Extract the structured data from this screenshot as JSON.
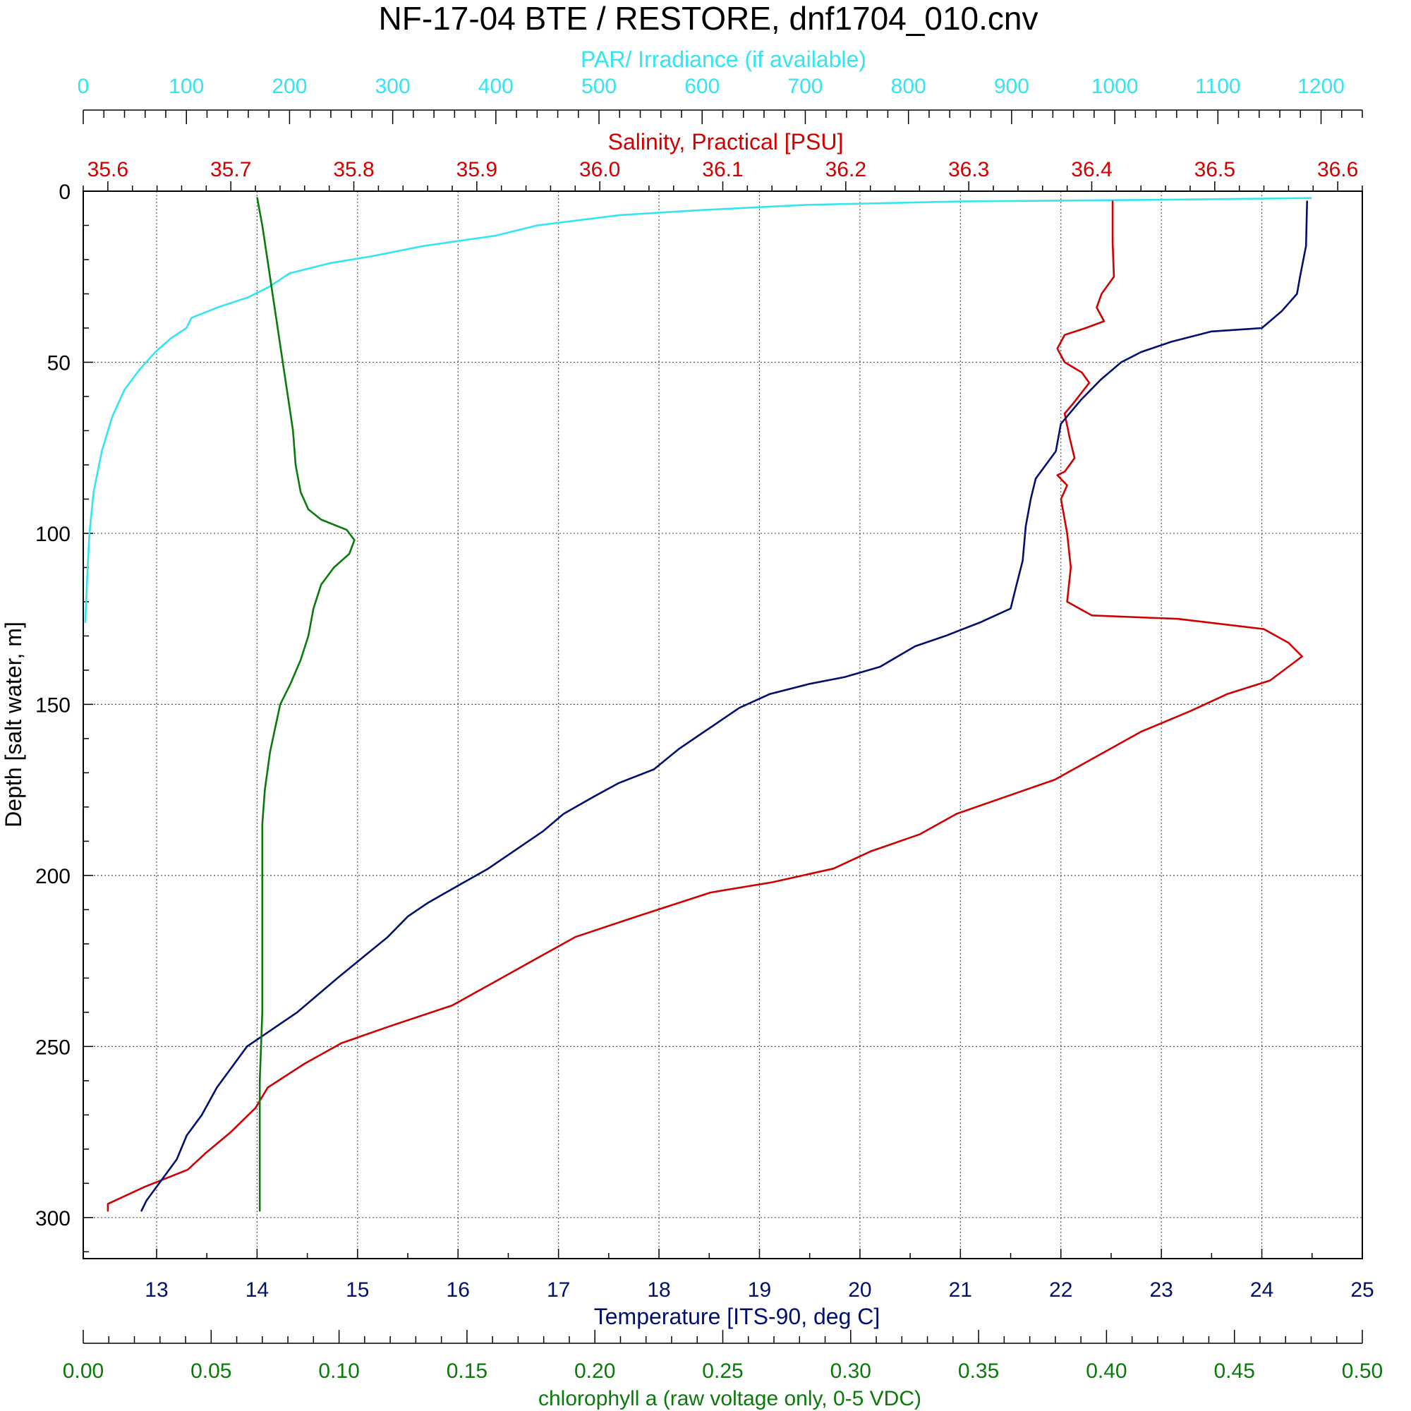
{
  "chart_data": {
    "type": "line",
    "title": "NF-17-04 BTE / RESTORE, dnf1704_010.cnv",
    "ylabel": "Depth [salt water, m]",
    "ylim": [
      0,
      312
    ],
    "y_inverted": true,
    "yticks": [
      "0",
      "50",
      "100",
      "150",
      "200",
      "250",
      "300"
    ],
    "grid": true,
    "axes": {
      "par": {
        "label": "PAR/ Irradiance (if available)",
        "color": "#33e5f0",
        "range": [
          0,
          1240
        ],
        "position": "top",
        "ticks": [
          "0",
          "100",
          "200",
          "300",
          "400",
          "500",
          "600",
          "700",
          "800",
          "900",
          "1000",
          "1100",
          "1200"
        ]
      },
      "salinity": {
        "label": "Salinity, Practical [PSU]",
        "color": "#d00000",
        "range": [
          35.58,
          36.62
        ],
        "position": "top",
        "ticks": [
          "35.6",
          "35.7",
          "35.8",
          "35.9",
          "36.0",
          "36.1",
          "36.2",
          "36.3",
          "36.4",
          "36.5",
          "36.6"
        ]
      },
      "temperature": {
        "label": "Temperature [ITS-90, deg C]",
        "color": "#00106e",
        "range": [
          12.27,
          25.0
        ],
        "position": "bottom",
        "ticks": [
          "13",
          "14",
          "15",
          "16",
          "17",
          "18",
          "19",
          "20",
          "21",
          "22",
          "23",
          "24",
          "25"
        ]
      },
      "chlorophyll": {
        "label": "chlorophyll a (raw voltage only, 0-5 VDC)",
        "color": "#0a7a0a",
        "range": [
          0.0,
          0.5
        ],
        "position": "bottom",
        "ticks": [
          "0.00",
          "0.05",
          "0.10",
          "0.15",
          "0.20",
          "0.25",
          "0.30",
          "0.35",
          "0.40",
          "0.45",
          "0.50"
        ]
      }
    },
    "series": [
      {
        "axis": "par",
        "points": [
          [
            1190,
            2
          ],
          [
            1050,
            2.5
          ],
          [
            850,
            3
          ],
          [
            700,
            4
          ],
          [
            600,
            5.5
          ],
          [
            520,
            7
          ],
          [
            440,
            10
          ],
          [
            400,
            13
          ],
          [
            330,
            16
          ],
          [
            280,
            19
          ],
          [
            240,
            21
          ],
          [
            200,
            24
          ],
          [
            180,
            28
          ],
          [
            160,
            31
          ],
          [
            130,
            34
          ],
          [
            105,
            37
          ],
          [
            100,
            40
          ],
          [
            85,
            43
          ],
          [
            70,
            47
          ],
          [
            55,
            52
          ],
          [
            40,
            58
          ],
          [
            28,
            66
          ],
          [
            18,
            76
          ],
          [
            10,
            88
          ],
          [
            6,
            100
          ],
          [
            4,
            112
          ],
          [
            2,
            126
          ]
        ]
      },
      {
        "axis": "salinity",
        "points": [
          [
            36.417,
            3
          ],
          [
            36.417,
            15
          ],
          [
            36.418,
            25
          ],
          [
            36.408,
            30
          ],
          [
            36.404,
            34
          ],
          [
            36.41,
            38
          ],
          [
            36.395,
            40
          ],
          [
            36.378,
            42
          ],
          [
            36.372,
            46
          ],
          [
            36.378,
            50
          ],
          [
            36.392,
            53
          ],
          [
            36.398,
            56
          ],
          [
            36.385,
            62
          ],
          [
            36.378,
            65
          ],
          [
            36.382,
            72
          ],
          [
            36.386,
            78
          ],
          [
            36.378,
            82
          ],
          [
            36.372,
            83
          ],
          [
            36.38,
            86
          ],
          [
            36.375,
            90
          ],
          [
            36.38,
            100
          ],
          [
            36.383,
            110
          ],
          [
            36.38,
            120
          ],
          [
            36.4,
            124
          ],
          [
            36.47,
            125
          ],
          [
            36.54,
            128
          ],
          [
            36.56,
            132
          ],
          [
            36.571,
            136
          ],
          [
            36.545,
            143
          ],
          [
            36.51,
            147
          ],
          [
            36.48,
            152
          ],
          [
            36.44,
            158
          ],
          [
            36.4,
            166
          ],
          [
            36.37,
            172
          ],
          [
            36.33,
            177
          ],
          [
            36.29,
            182
          ],
          [
            36.26,
            188
          ],
          [
            36.22,
            193
          ],
          [
            36.19,
            198
          ],
          [
            36.14,
            202
          ],
          [
            36.09,
            205
          ],
          [
            36.03,
            212
          ],
          [
            35.98,
            218
          ],
          [
            35.95,
            224
          ],
          [
            35.91,
            232
          ],
          [
            35.88,
            238
          ],
          [
            35.83,
            244
          ],
          [
            35.79,
            249
          ],
          [
            35.76,
            255
          ],
          [
            35.73,
            262
          ],
          [
            35.72,
            268
          ],
          [
            35.7,
            275
          ],
          [
            35.68,
            281
          ],
          [
            35.665,
            286
          ],
          [
            35.63,
            291
          ],
          [
            35.6,
            296
          ],
          [
            35.6,
            298
          ]
        ]
      },
      {
        "axis": "temperature",
        "points": [
          [
            24.45,
            3
          ],
          [
            24.44,
            16
          ],
          [
            24.38,
            25
          ],
          [
            24.35,
            30
          ],
          [
            24.2,
            35
          ],
          [
            24.0,
            40
          ],
          [
            23.5,
            41
          ],
          [
            23.1,
            44
          ],
          [
            22.8,
            47
          ],
          [
            22.6,
            50
          ],
          [
            22.4,
            55
          ],
          [
            22.2,
            61
          ],
          [
            22.0,
            68
          ],
          [
            21.95,
            76
          ],
          [
            21.85,
            80
          ],
          [
            21.75,
            84
          ],
          [
            21.7,
            90
          ],
          [
            21.65,
            98
          ],
          [
            21.62,
            108
          ],
          [
            21.55,
            116
          ],
          [
            21.5,
            122
          ],
          [
            21.2,
            126
          ],
          [
            20.85,
            130
          ],
          [
            20.55,
            133
          ],
          [
            20.2,
            139
          ],
          [
            19.85,
            142
          ],
          [
            19.5,
            144
          ],
          [
            19.1,
            147
          ],
          [
            18.8,
            151
          ],
          [
            18.6,
            155
          ],
          [
            18.4,
            159
          ],
          [
            18.2,
            163
          ],
          [
            17.95,
            169
          ],
          [
            17.6,
            173
          ],
          [
            17.35,
            177
          ],
          [
            17.05,
            182
          ],
          [
            16.85,
            187
          ],
          [
            16.6,
            192
          ],
          [
            16.3,
            198
          ],
          [
            16.0,
            203
          ],
          [
            15.7,
            208
          ],
          [
            15.5,
            212
          ],
          [
            15.3,
            218
          ],
          [
            15.05,
            224
          ],
          [
            14.8,
            230
          ],
          [
            14.6,
            235
          ],
          [
            14.4,
            240
          ],
          [
            14.1,
            246
          ],
          [
            13.9,
            250
          ],
          [
            13.75,
            256
          ],
          [
            13.6,
            262
          ],
          [
            13.45,
            270
          ],
          [
            13.3,
            276
          ],
          [
            13.2,
            283
          ],
          [
            13.05,
            289
          ],
          [
            12.9,
            295
          ],
          [
            12.85,
            298
          ]
        ]
      },
      {
        "axis": "chlorophyll",
        "points": [
          [
            0.068,
            2
          ],
          [
            0.07,
            10
          ],
          [
            0.072,
            20
          ],
          [
            0.074,
            30
          ],
          [
            0.076,
            40
          ],
          [
            0.078,
            50
          ],
          [
            0.08,
            60
          ],
          [
            0.082,
            70
          ],
          [
            0.083,
            80
          ],
          [
            0.085,
            88
          ],
          [
            0.088,
            93
          ],
          [
            0.093,
            96
          ],
          [
            0.103,
            99
          ],
          [
            0.106,
            102
          ],
          [
            0.104,
            106
          ],
          [
            0.098,
            110
          ],
          [
            0.093,
            115
          ],
          [
            0.09,
            122
          ],
          [
            0.088,
            130
          ],
          [
            0.085,
            137
          ],
          [
            0.081,
            144
          ],
          [
            0.077,
            150
          ],
          [
            0.075,
            157
          ],
          [
            0.073,
            164
          ],
          [
            0.071,
            175
          ],
          [
            0.07,
            185
          ],
          [
            0.07,
            200
          ],
          [
            0.07,
            220
          ],
          [
            0.07,
            240
          ],
          [
            0.069,
            260
          ],
          [
            0.069,
            280
          ],
          [
            0.069,
            298
          ]
        ]
      }
    ]
  }
}
